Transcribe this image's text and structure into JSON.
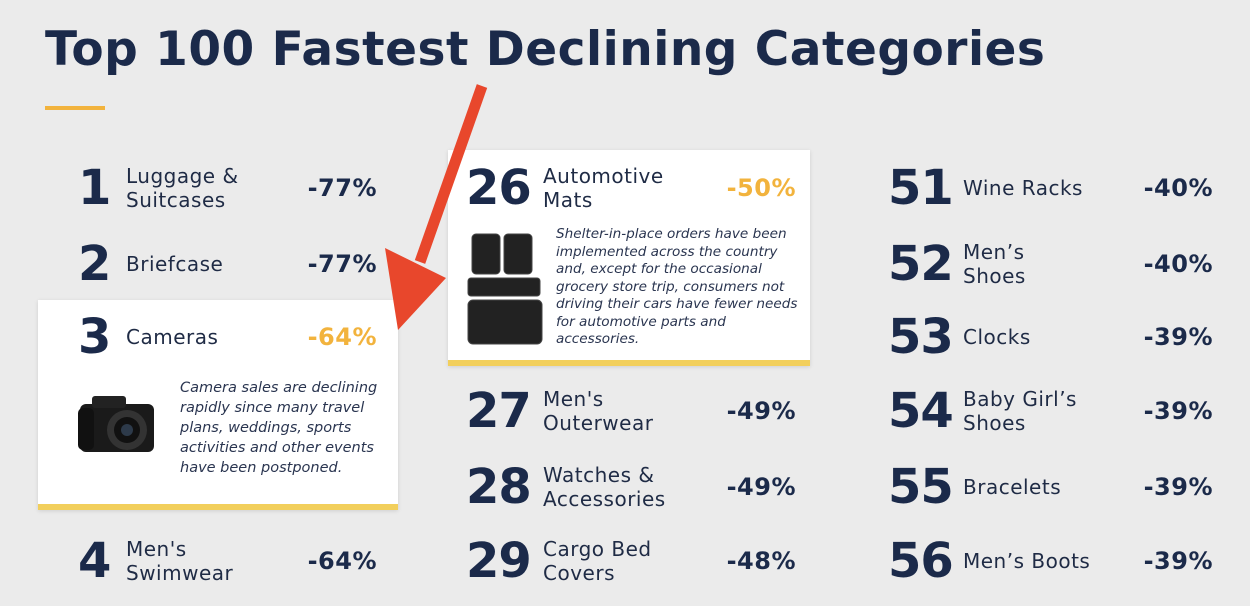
{
  "title": "Top 100 Fastest Declining Categories",
  "columns": [
    {
      "items": [
        {
          "rank": 1,
          "name": "Luggage & Suitcases",
          "change": "-77%"
        },
        {
          "rank": 2,
          "name": "Briefcase",
          "change": "-77%"
        },
        {
          "rank": 3,
          "name": "Cameras",
          "change": "-64%",
          "description": "Camera sales are declining rapidly since many travel plans, weddings, sports activities and other events have been postponed."
        },
        {
          "rank": 4,
          "name": "Men's Swimwear",
          "change": "-64%"
        }
      ]
    },
    {
      "items": [
        {
          "rank": 26,
          "name": "Automotive Mats",
          "change": "-50%",
          "description": "Shelter-in-place orders have been implemented across the country and, except for the occasional grocery store trip, consumers not driving their cars have fewer needs for automotive parts and accessories."
        },
        {
          "rank": 27,
          "name": "Men's Outerwear",
          "change": "-49%"
        },
        {
          "rank": 28,
          "name": "Watches & Accessories",
          "change": "-49%"
        },
        {
          "rank": 29,
          "name": "Cargo Bed Covers",
          "change": "-48%"
        }
      ]
    },
    {
      "items": [
        {
          "rank": 51,
          "name": "Wine Racks",
          "change": "-40%"
        },
        {
          "rank": 52,
          "name": "Men’s Shoes",
          "change": "-40%"
        },
        {
          "rank": 53,
          "name": "Clocks",
          "change": "-39%"
        },
        {
          "rank": 54,
          "name": "Baby Girl’s Shoes",
          "change": "-39%"
        },
        {
          "rank": 55,
          "name": "Bracelets",
          "change": "-39%"
        },
        {
          "rank": 56,
          "name": "Men’s Boots",
          "change": "-39%"
        }
      ]
    }
  ]
}
